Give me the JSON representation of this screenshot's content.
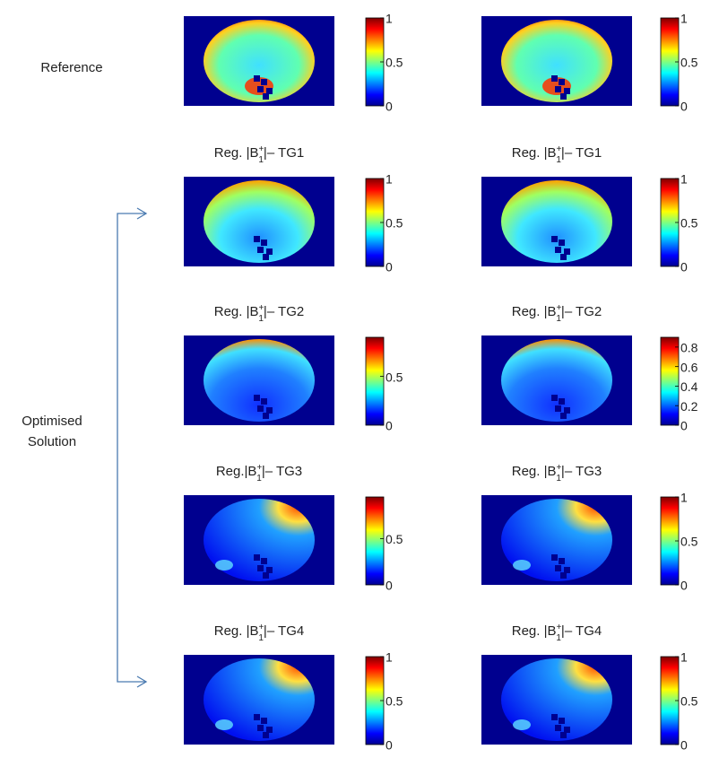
{
  "row_labels": {
    "reference": "Reference",
    "optimised": [
      "Optimised",
      "Solution"
    ]
  },
  "rows": [
    {
      "panels": [
        {
          "clim": [
            0,
            1
          ],
          "ticks": [
            0,
            0.5,
            1
          ]
        },
        {
          "clim": [
            0,
            1
          ],
          "ticks": [
            0,
            0.5,
            1
          ]
        }
      ]
    },
    {
      "panels": [
        {
          "title": {
            "prefix": "Reg. |B",
            "sup": "+",
            "sub": "1",
            "suffix": "|– TG1"
          },
          "clim": [
            0,
            1
          ],
          "ticks": [
            0,
            0.5,
            1
          ]
        },
        {
          "title": {
            "prefix": "Reg. |B",
            "sup": "+",
            "sub": "1",
            "suffix": "|– TG1"
          },
          "clim": [
            0,
            1
          ],
          "ticks": [
            0,
            0.5,
            1
          ]
        }
      ]
    },
    {
      "panels": [
        {
          "title": {
            "prefix": "Reg. |B",
            "sup": "+",
            "sub": "1",
            "suffix": "|– TG2"
          },
          "clim": [
            0,
            0.9
          ],
          "ticks": [
            0,
            0.5
          ]
        },
        {
          "title": {
            "prefix": "Reg. |B",
            "sup": "+",
            "sub": "1",
            "suffix": "|– TG2"
          },
          "clim": [
            0,
            0.9
          ],
          "ticks": [
            0,
            0.2,
            0.4,
            0.6,
            0.8
          ]
        }
      ]
    },
    {
      "panels": [
        {
          "title": {
            "prefix": "Reg.|B",
            "sup": "+",
            "sub": "1",
            "suffix": "|– TG3"
          },
          "clim": [
            0,
            0.95
          ],
          "ticks": [
            0,
            0.5
          ]
        },
        {
          "title": {
            "prefix": "Reg. |B",
            "sup": "+",
            "sub": "1",
            "suffix": "|– TG3"
          },
          "clim": [
            0,
            1
          ],
          "ticks": [
            0,
            0.5,
            1
          ]
        }
      ]
    },
    {
      "panels": [
        {
          "title": {
            "prefix": "Reg. |B",
            "sup": "+",
            "sub": "1",
            "suffix": "|– TG4"
          },
          "clim": [
            0,
            1
          ],
          "ticks": [
            0,
            0.5,
            1
          ]
        },
        {
          "title": {
            "prefix": "Reg. |B",
            "sup": "+",
            "sub": "1",
            "suffix": "|– TG4"
          },
          "clim": [
            0,
            1
          ],
          "ticks": [
            0,
            0.5,
            1
          ]
        }
      ]
    }
  ]
}
